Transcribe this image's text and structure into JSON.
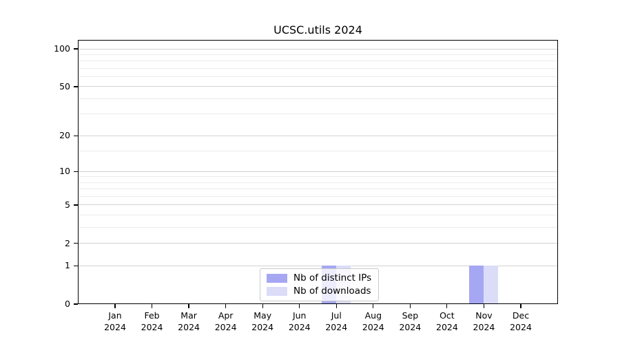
{
  "chart_data": {
    "type": "bar",
    "title": "UCSC.utils 2024",
    "categories": [
      {
        "month": "Jan",
        "year": "2024"
      },
      {
        "month": "Feb",
        "year": "2024"
      },
      {
        "month": "Mar",
        "year": "2024"
      },
      {
        "month": "Apr",
        "year": "2024"
      },
      {
        "month": "May",
        "year": "2024"
      },
      {
        "month": "Jun",
        "year": "2024"
      },
      {
        "month": "Jul",
        "year": "2024"
      },
      {
        "month": "Aug",
        "year": "2024"
      },
      {
        "month": "Sep",
        "year": "2024"
      },
      {
        "month": "Oct",
        "year": "2024"
      },
      {
        "month": "Nov",
        "year": "2024"
      },
      {
        "month": "Dec",
        "year": "2024"
      }
    ],
    "series": [
      {
        "name": "Nb of distinct IPs",
        "color": "#a5a7f3",
        "values": [
          0,
          0,
          0,
          0,
          0,
          0,
          1,
          0,
          0,
          0,
          1,
          0
        ]
      },
      {
        "name": "Nb of downloads",
        "color": "#dbdcf8",
        "values": [
          0,
          0,
          0,
          0,
          0,
          0,
          1,
          0,
          0,
          0,
          1,
          0
        ]
      }
    ],
    "xlabel": "",
    "ylabel": "",
    "y_axis": {
      "scale": "log1p",
      "ticks": [
        0,
        1,
        2,
        5,
        10,
        20,
        50,
        100
      ],
      "minor_gridlines": [
        3,
        4,
        6,
        7,
        8,
        9,
        15,
        30,
        40,
        60,
        70,
        80,
        90
      ],
      "ylim": [
        0,
        116
      ]
    },
    "grid": true,
    "legend_position": "lower center"
  }
}
